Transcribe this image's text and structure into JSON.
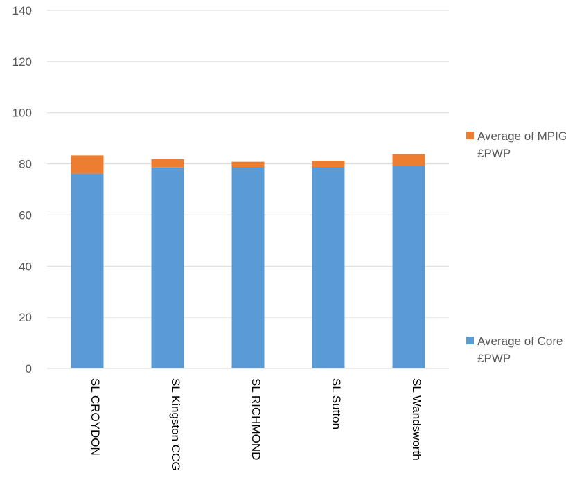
{
  "chart_data": {
    "type": "bar",
    "stacked": true,
    "categories": [
      "SL CROYDON",
      "SL Kingston CCG",
      "SL RICHMOND",
      "SL Sutton",
      "SL Wandsworth"
    ],
    "series": [
      {
        "name": "Average of Core £PWP",
        "values": [
          76.2,
          78.6,
          78.8,
          78.8,
          79.2
        ],
        "color": "#5b9bd5"
      },
      {
        "name": "Average of MPIG £PWP",
        "values": [
          7.1,
          3.2,
          2.0,
          2.4,
          4.6
        ],
        "color": "#ed7d31"
      }
    ],
    "ylim": [
      0,
      140
    ],
    "yticks": [
      0,
      20,
      40,
      60,
      80,
      100,
      120,
      140
    ],
    "tick_labels": [
      "0",
      "20",
      "40",
      "60",
      "80",
      "100",
      "120",
      "140"
    ],
    "grid": true,
    "legend_position": "right",
    "x_label_rotation": "vertical"
  }
}
